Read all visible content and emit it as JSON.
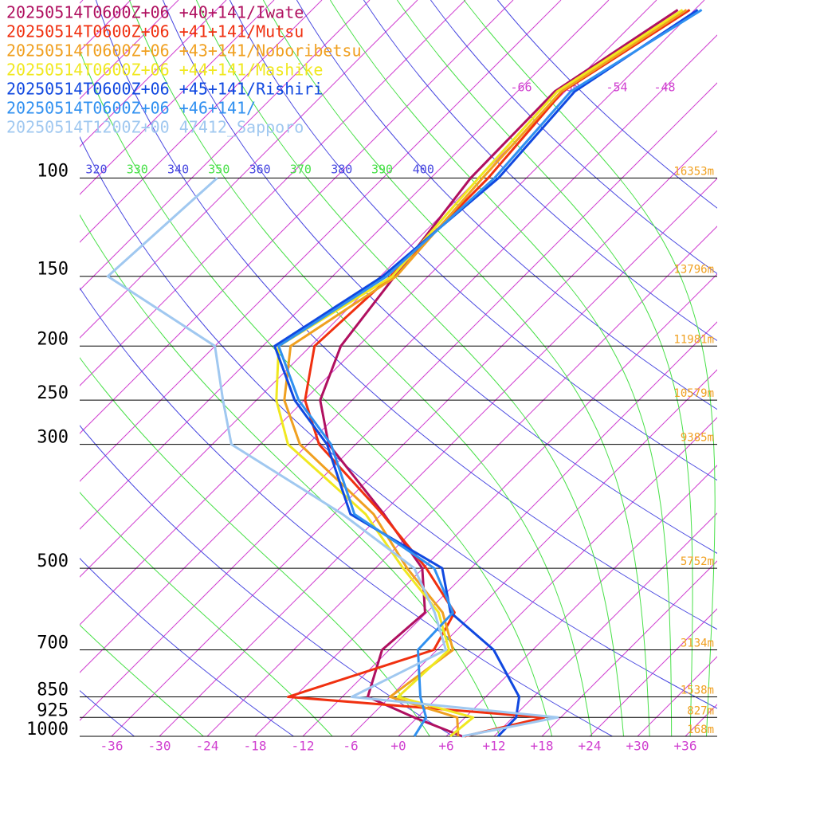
{
  "chart_data": {
    "type": "skewt",
    "ylim": [
      1000,
      48
    ],
    "log_y": true,
    "yticks": [
      100,
      150,
      200,
      250,
      300,
      500,
      700,
      850,
      925,
      1000
    ],
    "height_labels": [
      "16353m",
      "13796m",
      "11981m",
      "10579m",
      "9385m",
      "5752m",
      "3134m",
      "1538m",
      "827m",
      "168m"
    ],
    "xlim": [
      -40,
      40
    ],
    "xticks": [
      -36,
      -30,
      -24,
      -18,
      -12,
      {
        "value": -6,
        "label": "-6"
      },
      {
        "value": 0,
        "label": "+0"
      },
      {
        "value": 6,
        "label": "+6"
      },
      {
        "value": 12,
        "label": "+12"
      },
      {
        "value": 18,
        "label": "+18"
      },
      {
        "value": 24,
        "label": "+24"
      },
      {
        "value": 30,
        "label": "+30"
      },
      {
        "value": 36,
        "label": "+36"
      }
    ],
    "isotherm_labels": [
      -66,
      -60,
      -54,
      -48
    ],
    "isotherm_color": "#d040d0",
    "theta_labels": [
      320,
      340,
      360,
      380,
      400
    ],
    "theta_color": "#4848e0",
    "theta_e_labels": [
      330,
      350,
      370,
      390
    ],
    "theta_e_color": "#48e048",
    "pressure": [
      1000,
      925,
      850,
      700,
      600,
      500,
      400,
      300,
      250,
      200,
      150,
      100,
      70,
      50
    ],
    "series": [
      {
        "name": "20250514T0600Z+06 +40+141/Iwate",
        "color": "#b01060",
        "values": [
          8.0,
          -0.4,
          -8.8,
          -12.9,
          -12.2,
          -18.1,
          -29.7,
          -45.4,
          -52.0,
          -56.2,
          -58.2,
          -61.0,
          -61.3,
          -56.1
        ]
      },
      {
        "name": "20250514T0600Z+06 +41+141/Mutsu",
        "color": "#f03010",
        "values": [
          8.3,
          15.9,
          -18.8,
          -6.4,
          -8.5,
          -17.6,
          -29.9,
          -46.6,
          -53.9,
          -59.5,
          -58.7,
          -58.8,
          -60.3,
          -54.6
        ]
      },
      {
        "name": "20250514T0600Z+06 +43+141/Noboribetsu",
        "color": "#f0a020",
        "values": [
          7.5,
          5.0,
          -6.0,
          -4.0,
          -10.0,
          -20.0,
          -31.0,
          -49.0,
          -56.5,
          -62.5,
          -58.0,
          -59.5,
          -60.5,
          -55.0
        ]
      },
      {
        "name": "20250514T0600Z+06 +44+141/Mashike",
        "color": "#f0e820",
        "values": [
          6.5,
          7.0,
          -5.0,
          -4.5,
          -10.5,
          -20.5,
          -32.0,
          -50.5,
          -57.5,
          -64.0,
          -58.5,
          -60.0,
          -61.0,
          -55.5
        ]
      },
      {
        "name": "20250514T0600Z+06 +45+141/Rishiri",
        "color": "#1048e0",
        "values": [
          12.5,
          12.4,
          10.2,
          1.1,
          -9.0,
          -15.6,
          -33.9,
          -45.6,
          -55.2,
          -64.5,
          -59.7,
          -57.5,
          -58.8,
          -53.6
        ]
      },
      {
        "name": "20250514T0600Z+06 +46+141/",
        "color": "#3090f0",
        "values": [
          2.0,
          1.1,
          -2.2,
          -8.4,
          -8.7,
          -16.6,
          -33.4,
          -45.1,
          -54.7,
          -64.0,
          -59.2,
          -58.0,
          -59.3,
          -53.1
        ]
      },
      {
        "name": "20250514T1200Z+00 47412_Sapporo",
        "color": "#a0c8f0",
        "values": [
          8.0,
          17.6,
          -10.8,
          -4.9,
          -11.0,
          -19.1,
          -34.9,
          -57.6,
          -64.2,
          -72.0,
          -94.2,
          -92.8,
          null,
          null
        ]
      }
    ]
  }
}
